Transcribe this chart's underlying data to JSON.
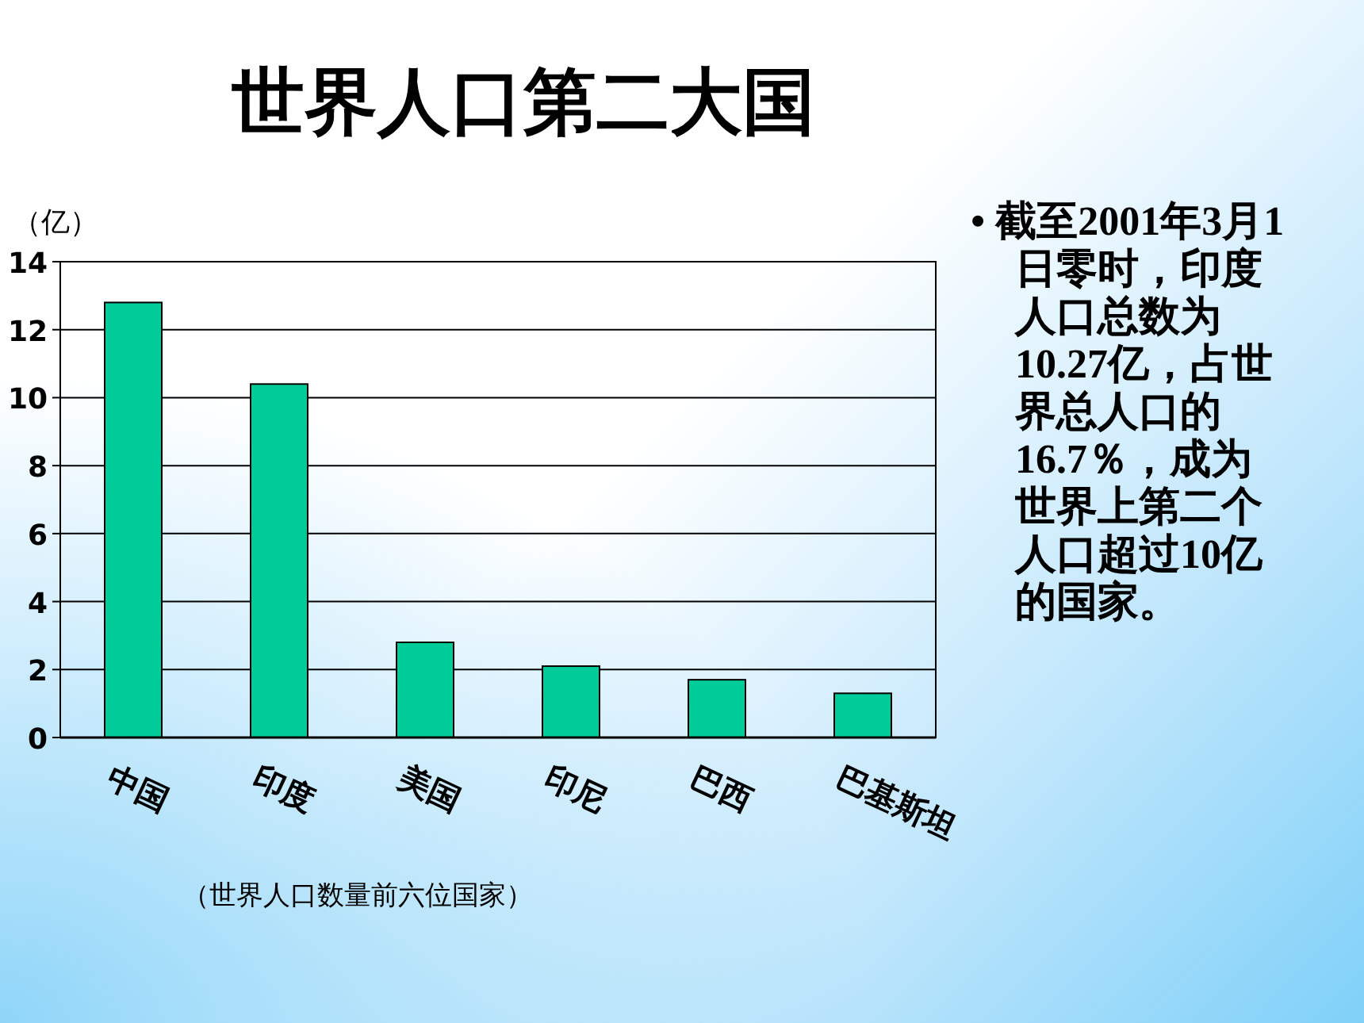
{
  "chart_data": {
    "type": "bar",
    "title": "世界人口第二大国",
    "ylabel": "（亿）",
    "categories": [
      "中国",
      "印度",
      "美国",
      "印尼",
      "巴西",
      "巴基斯坦"
    ],
    "values": [
      12.8,
      10.4,
      2.8,
      2.1,
      1.7,
      1.3
    ],
    "color": "#00cc99",
    "ylim": [
      0,
      14
    ],
    "yticks": [
      0,
      2,
      4,
      6,
      8,
      10,
      12,
      14
    ],
    "grid": "y",
    "annotations": [
      "• 截至2001年3月1日零时，印度人口总数为10.27亿，占世界总人口的16.7％，成为世界上第二个人口超过10亿的国家。",
      "（世界人口数量前六位国家）"
    ]
  }
}
